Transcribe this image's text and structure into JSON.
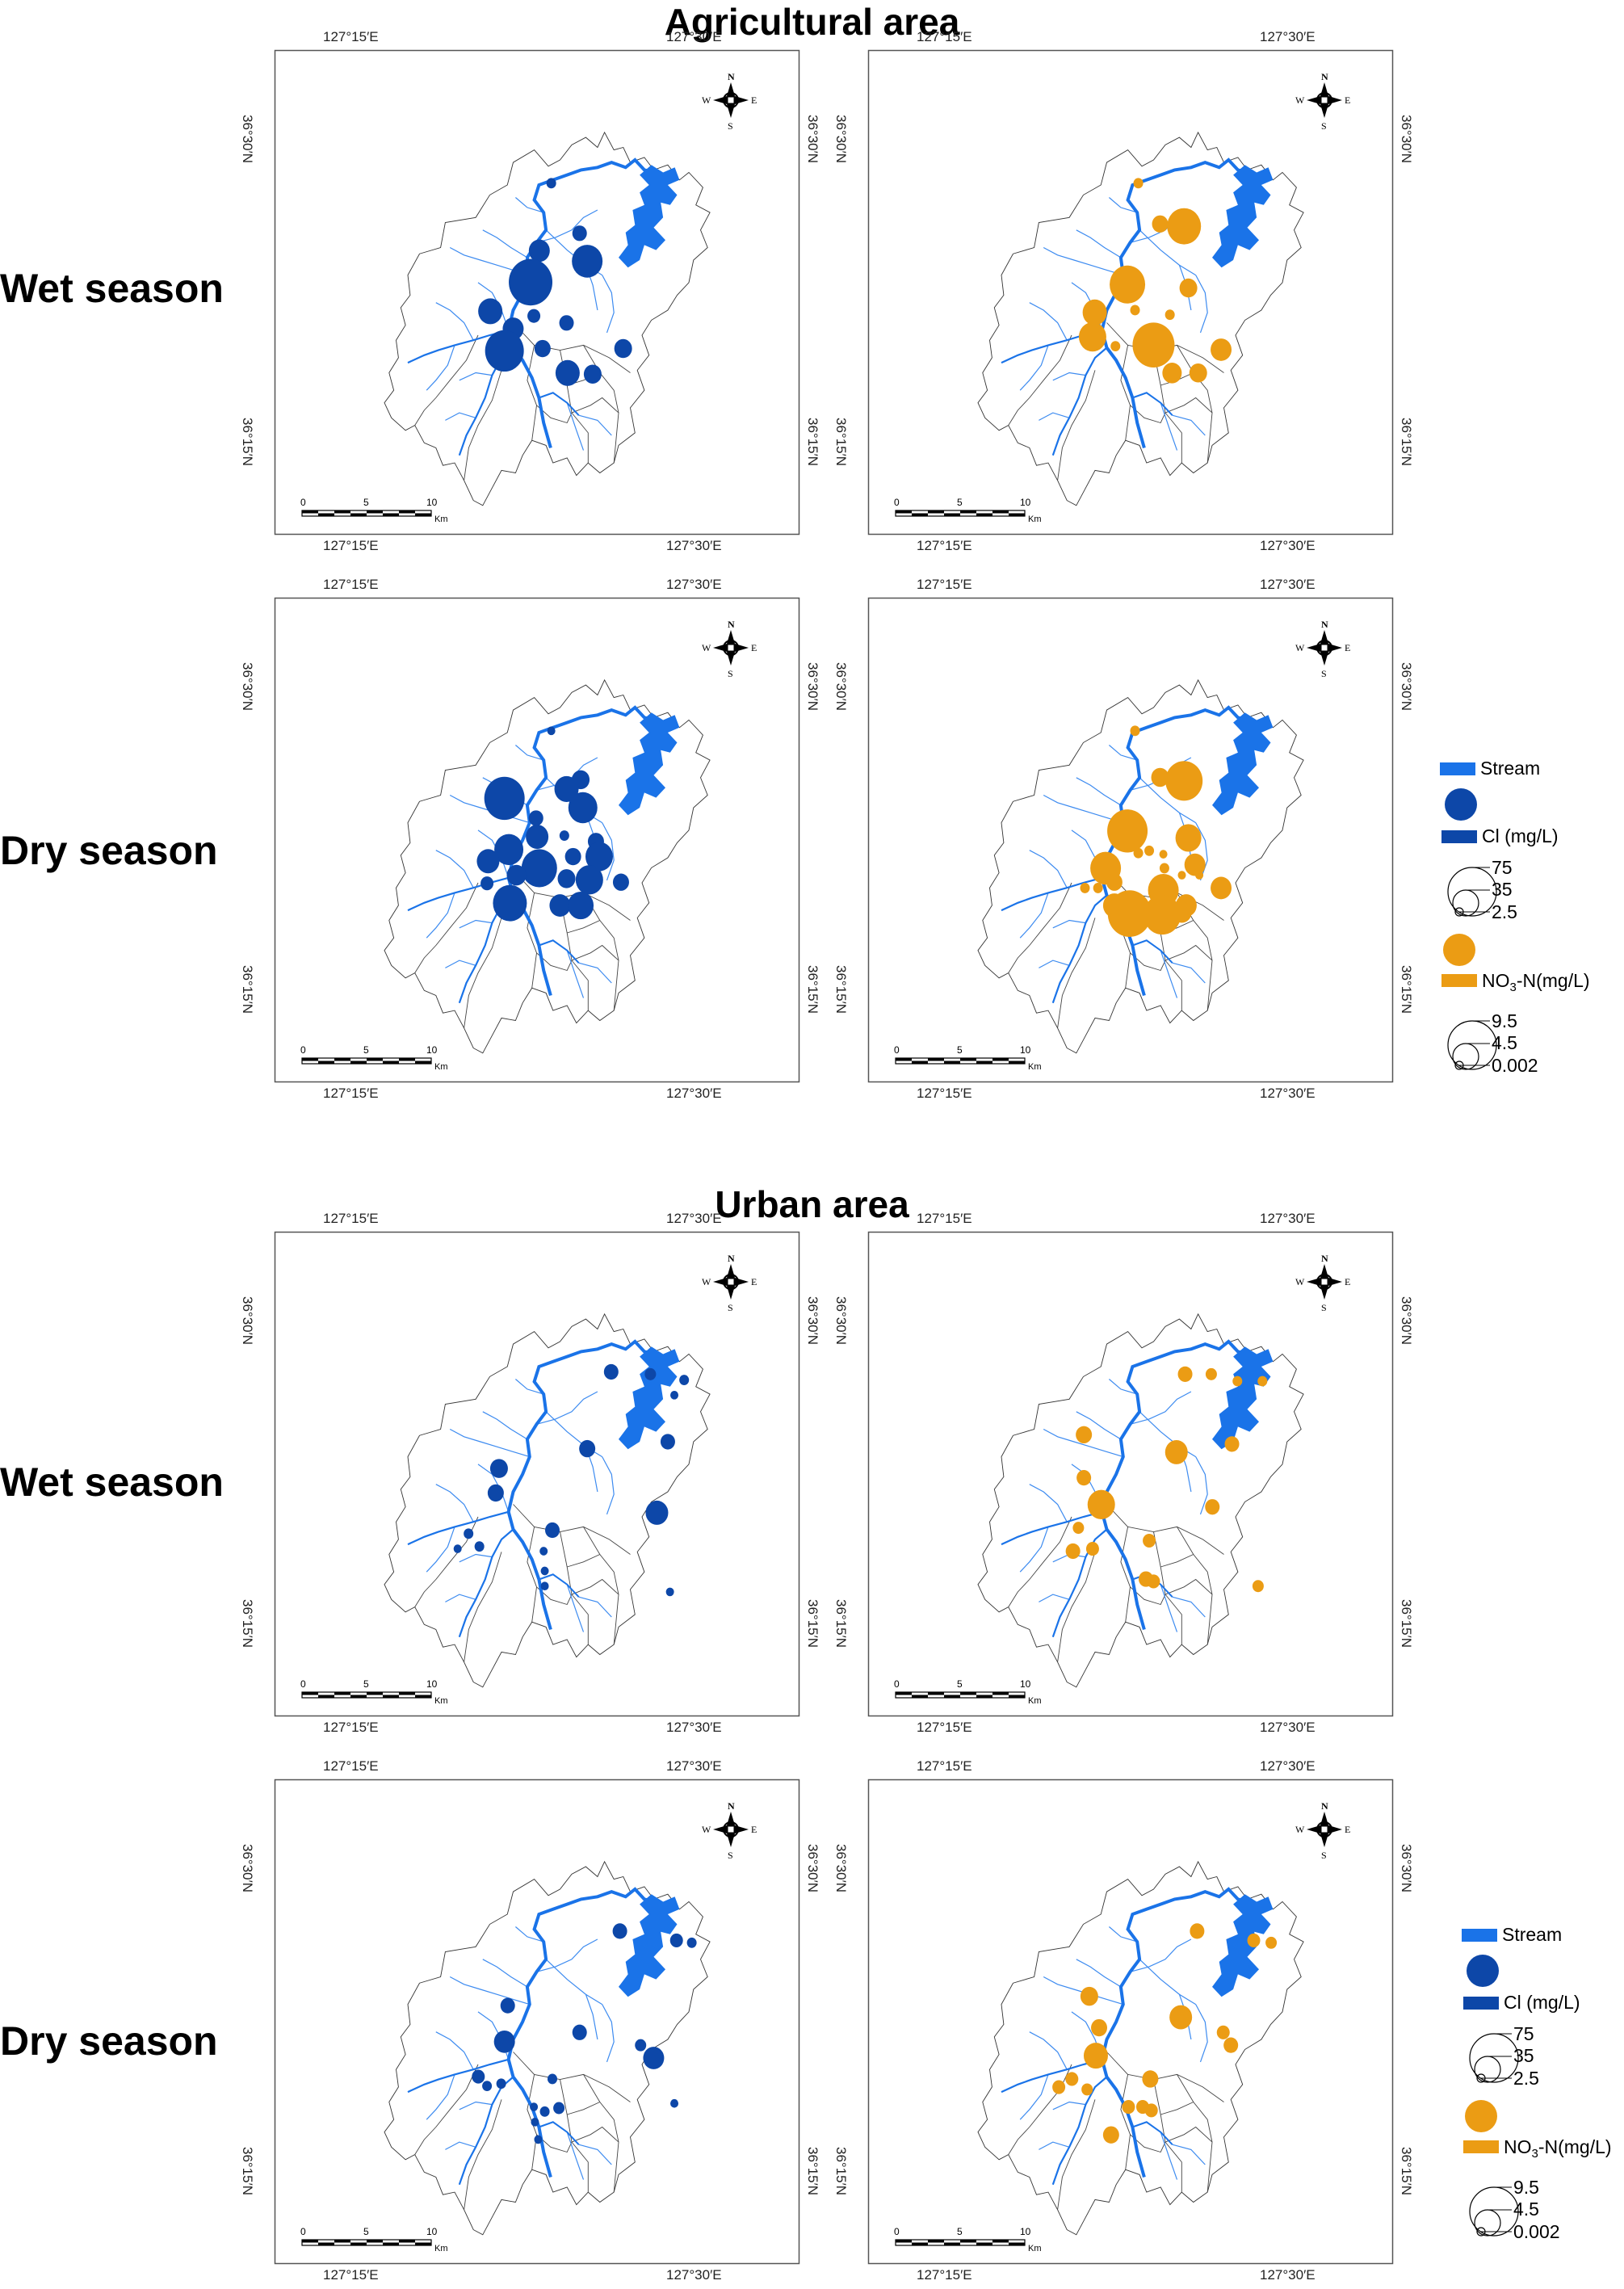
{
  "sections": [
    {
      "title": "Agricultural area",
      "rows": [
        {
          "label": "Wet season"
        },
        {
          "label": "Dry season"
        }
      ]
    },
    {
      "title": "Urban area",
      "rows": [
        {
          "label": "Wet season"
        },
        {
          "label": "Dry season"
        }
      ]
    }
  ],
  "map": {
    "lon_labels": [
      "127°15′E",
      "127°30′E"
    ],
    "lat_labels": [
      "36°30′N",
      "36°15′N"
    ],
    "scale_labels": [
      "0",
      "5",
      "10"
    ],
    "scale_unit": "Km",
    "compass": {
      "n": "N",
      "s": "S",
      "e": "E",
      "w": "W"
    }
  },
  "legend": {
    "stream_label": "Stream",
    "cl_label": "Cl (mg/L)",
    "cl_values": [
      "75",
      "35",
      "2.5"
    ],
    "no3_label_main": "NO",
    "no3_label_sub": "3",
    "no3_label_rest": "-N(mg/L)",
    "no3_values": [
      "9.5",
      "4.5",
      "0.002"
    ],
    "colors": {
      "stream": "#1a73e8",
      "cl": "#0d47a8",
      "no3": "#eb9c14"
    }
  },
  "maps_points": {
    "agri_wet_cl": [
      [
        164,
        20,
        6
      ],
      [
        190,
        63,
        9
      ],
      [
        153,
        78,
        13
      ],
      [
        145,
        105,
        27
      ],
      [
        197,
        87,
        19
      ],
      [
        108,
        130,
        15
      ],
      [
        129,
        145,
        13
      ],
      [
        148,
        134,
        8
      ],
      [
        178,
        140,
        9
      ],
      [
        156,
        162,
        10
      ],
      [
        121,
        164,
        24
      ],
      [
        230,
        162,
        11
      ],
      [
        179,
        183,
        15
      ],
      [
        202,
        184,
        11
      ]
    ],
    "agri_wet_no3": [
      [
        158,
        20,
        6
      ],
      [
        178,
        55,
        10
      ],
      [
        200,
        57,
        21
      ],
      [
        148,
        107,
        22
      ],
      [
        204,
        110,
        11
      ],
      [
        155,
        129,
        6
      ],
      [
        187,
        133,
        6
      ],
      [
        118,
        131,
        15
      ],
      [
        116,
        152,
        17
      ],
      [
        137,
        160,
        6
      ],
      [
        172,
        159,
        26
      ],
      [
        234,
        163,
        13
      ],
      [
        189,
        183,
        12
      ],
      [
        213,
        183,
        11
      ]
    ],
    "agri_dry_cl": [
      [
        164,
        20,
        5
      ],
      [
        191,
        62,
        11
      ],
      [
        178,
        70,
        15
      ],
      [
        121,
        78,
        25
      ],
      [
        193,
        86,
        18
      ],
      [
        150,
        95,
        9
      ],
      [
        151,
        111,
        14
      ],
      [
        176,
        110,
        6
      ],
      [
        205,
        115,
        10
      ],
      [
        125,
        122,
        18
      ],
      [
        153,
        138,
        22
      ],
      [
        184,
        128,
        10
      ],
      [
        208,
        128,
        17
      ],
      [
        106,
        132,
        14
      ],
      [
        132,
        144,
        12
      ],
      [
        178,
        147,
        11
      ],
      [
        199,
        148,
        17
      ],
      [
        228,
        150,
        10
      ],
      [
        105,
        151,
        8
      ],
      [
        126,
        168,
        21
      ],
      [
        172,
        170,
        13
      ],
      [
        191,
        170,
        16
      ]
    ],
    "agri_dry_no3": [
      [
        155,
        20,
        6
      ],
      [
        178,
        60,
        11
      ],
      [
        200,
        63,
        23
      ],
      [
        148,
        106,
        25
      ],
      [
        204,
        112,
        16
      ],
      [
        158,
        125,
        6
      ],
      [
        168,
        123,
        6
      ],
      [
        181,
        126,
        5
      ],
      [
        128,
        138,
        19
      ],
      [
        210,
        135,
        13
      ],
      [
        182,
        138,
        6
      ],
      [
        198,
        144,
        5
      ],
      [
        214,
        144,
        5
      ],
      [
        121,
        155,
        6
      ],
      [
        136,
        150,
        10
      ],
      [
        181,
        157,
        19
      ],
      [
        109,
        155,
        6
      ],
      [
        136,
        170,
        14
      ],
      [
        234,
        155,
        13
      ],
      [
        202,
        170,
        13
      ],
      [
        150,
        177,
        27
      ],
      [
        180,
        178,
        23
      ],
      [
        198,
        176,
        12
      ]
    ],
    "urban_wet_cl": [
      [
        219,
        26,
        9
      ],
      [
        255,
        28,
        7
      ],
      [
        286,
        33,
        6
      ],
      [
        277,
        46,
        5
      ],
      [
        197,
        92,
        10
      ],
      [
        271,
        86,
        9
      ],
      [
        116,
        109,
        11
      ],
      [
        113,
        130,
        10
      ],
      [
        261,
        147,
        14
      ],
      [
        165,
        162,
        9
      ],
      [
        88,
        165,
        6
      ],
      [
        78,
        178,
        5
      ],
      [
        98,
        176,
        6
      ],
      [
        157,
        180,
        5
      ],
      [
        158,
        197,
        5
      ],
      [
        158,
        210,
        5
      ],
      [
        273,
        215,
        5
      ]
    ],
    "urban_wet_no3": [
      [
        201,
        28,
        9
      ],
      [
        225,
        28,
        7
      ],
      [
        249,
        34,
        6
      ],
      [
        272,
        34,
        6
      ],
      [
        108,
        80,
        10
      ],
      [
        193,
        95,
        14
      ],
      [
        244,
        88,
        9
      ],
      [
        108,
        117,
        9
      ],
      [
        124,
        140,
        17
      ],
      [
        226,
        142,
        9
      ],
      [
        103,
        160,
        7
      ],
      [
        98,
        180,
        9
      ],
      [
        116,
        178,
        8
      ],
      [
        168,
        171,
        8
      ],
      [
        165,
        204,
        9
      ],
      [
        172,
        206,
        8
      ],
      [
        268,
        210,
        7
      ]
    ],
    "urban_wet_cl_extra": [],
    "urban_dry_cl": [
      [
        227,
        36,
        9
      ],
      [
        279,
        44,
        8
      ],
      [
        293,
        46,
        6
      ],
      [
        124,
        100,
        9
      ],
      [
        190,
        123,
        9
      ],
      [
        121,
        131,
        13
      ],
      [
        246,
        134,
        7
      ],
      [
        258,
        145,
        13
      ],
      [
        97,
        161,
        8
      ],
      [
        105,
        169,
        6
      ],
      [
        118,
        167,
        6
      ],
      [
        165,
        163,
        6
      ],
      [
        277,
        184,
        5
      ],
      [
        148,
        187,
        5
      ],
      [
        158,
        191,
        6
      ],
      [
        171,
        188,
        7
      ],
      [
        149,
        200,
        5
      ],
      [
        152,
        215,
        5
      ]
    ],
    "urban_dry_no3": [
      [
        212,
        36,
        9
      ],
      [
        264,
        44,
        8
      ],
      [
        280,
        46,
        7
      ],
      [
        113,
        92,
        11
      ],
      [
        197,
        110,
        14
      ],
      [
        122,
        119,
        10
      ],
      [
        236,
        123,
        8
      ],
      [
        243,
        134,
        9
      ],
      [
        119,
        143,
        15
      ],
      [
        97,
        163,
        8
      ],
      [
        85,
        170,
        8
      ],
      [
        111,
        172,
        7
      ],
      [
        169,
        163,
        10
      ],
      [
        149,
        187,
        8
      ],
      [
        162,
        187,
        8
      ],
      [
        170,
        190,
        8
      ],
      [
        133,
        211,
        10
      ]
    ]
  }
}
